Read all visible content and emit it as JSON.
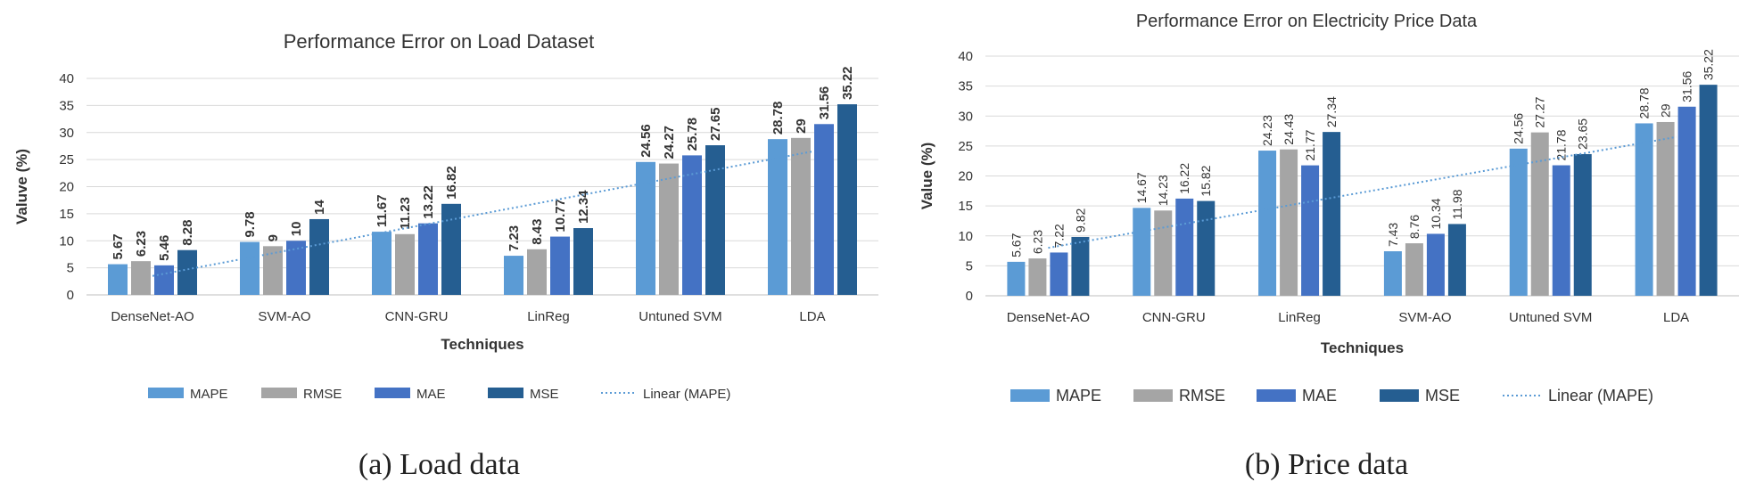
{
  "chart_data": [
    {
      "type": "bar",
      "title": "Performance Error on Load Dataset",
      "xlabel": "Techniques",
      "ylabel": "Valuve (%)",
      "ylim": [
        0,
        40
      ],
      "yticks": [
        "0",
        "5",
        "10",
        "15",
        "20",
        "25",
        "30",
        "35",
        "40"
      ],
      "categories": [
        "DenseNet-AO",
        "SVM-AO",
        "CNN-GRU",
        "LinReg",
        "Untuned SVM",
        "LDA"
      ],
      "series": [
        {
          "name": "MAPE",
          "color": "#5b9bd5",
          "values": [
            5.67,
            9.78,
            11.67,
            7.23,
            24.56,
            28.78
          ],
          "labels": [
            "5.67",
            "9.78",
            "11.67",
            "7.23",
            "24.56",
            "28.78"
          ]
        },
        {
          "name": "RMSE",
          "color": "#a5a5a5",
          "values": [
            6.23,
            9,
            11.23,
            8.43,
            24.27,
            29
          ],
          "labels": [
            "6.23",
            "9",
            "11.23",
            "8.43",
            "24.27",
            "29"
          ]
        },
        {
          "name": "MAE",
          "color": "#4472c4",
          "values": [
            5.46,
            10,
            13.22,
            10.77,
            25.78,
            31.56
          ],
          "labels": [
            "5.46",
            "10",
            "13.22",
            "10.77",
            "25.78",
            "31.56"
          ]
        },
        {
          "name": "MSE",
          "color": "#255e91",
          "values": [
            8.28,
            14,
            16.82,
            12.34,
            27.65,
            35.22
          ],
          "labels": [
            "8.28",
            "14",
            "16.82",
            "12.34",
            "27.65",
            "35.22"
          ]
        }
      ],
      "trendline": {
        "name": "Linear (MAPE)",
        "color": "#5b9bd5",
        "start": 3.5,
        "end": 26.5
      },
      "grid": true,
      "legend": "bottom",
      "caption": "(a) Load data"
    },
    {
      "type": "bar",
      "title": "Performance Error on Electricity Price Data",
      "xlabel": "Techniques",
      "ylabel": "Value (%)",
      "ylim": [
        0,
        40
      ],
      "yticks": [
        "0",
        "5",
        "10",
        "15",
        "20",
        "25",
        "30",
        "35",
        "40"
      ],
      "categories": [
        "DenseNet-AO",
        "CNN-GRU",
        "LinReg",
        "SVM-AO",
        "Untuned SVM",
        "LDA"
      ],
      "series": [
        {
          "name": "MAPE",
          "color": "#5b9bd5",
          "values": [
            5.67,
            14.67,
            24.23,
            7.43,
            24.56,
            28.78
          ],
          "labels": [
            "5.67",
            "14.67",
            "24.23",
            "7.43",
            "24.56",
            "28.78"
          ]
        },
        {
          "name": "RMSE",
          "color": "#a5a5a5",
          "values": [
            6.23,
            14.23,
            24.43,
            8.76,
            27.27,
            29
          ],
          "labels": [
            "6.23",
            "14.23",
            "24.43",
            "8.76",
            "27.27",
            "29"
          ]
        },
        {
          "name": "MAE",
          "color": "#4472c4",
          "values": [
            7.22,
            16.22,
            21.77,
            10.34,
            21.78,
            31.56
          ],
          "labels": [
            "7.22",
            "16.22",
            "21.77",
            "10.34",
            "21.78",
            "31.56"
          ]
        },
        {
          "name": "MSE",
          "color": "#255e91",
          "values": [
            9.82,
            15.82,
            27.34,
            11.98,
            23.65,
            35.22
          ],
          "labels": [
            "9.82",
            "15.82",
            "27.34",
            "11.98",
            "23.65",
            "35.22"
          ]
        }
      ],
      "trendline": {
        "name": "Linear (MAPE)",
        "color": "#5b9bd5",
        "start": 8.0,
        "end": 26.5
      },
      "grid": true,
      "legend": "bottom",
      "caption": "(b) Price data"
    }
  ]
}
